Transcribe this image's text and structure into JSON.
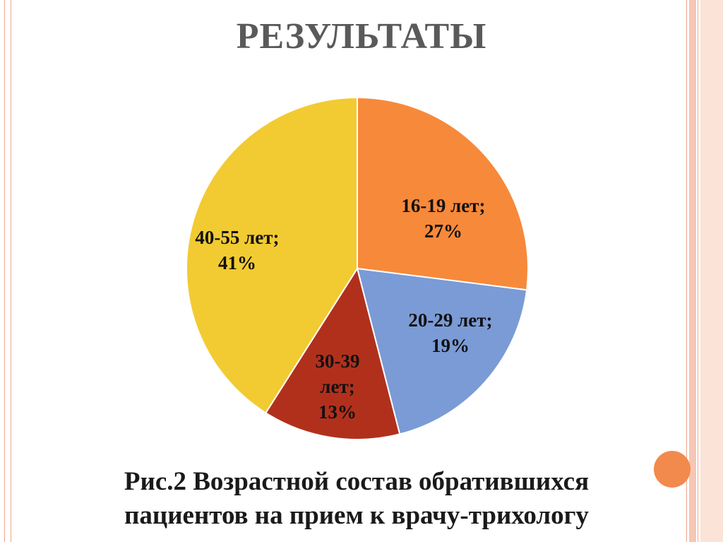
{
  "slide": {
    "title": "РЕЗУЛЬТАТЫ",
    "caption_line1": "Рис.2 Возрастной состав обратившихся",
    "caption_line2": "пациентов на прием к врачу-трихологу"
  },
  "chart_data": {
    "type": "pie",
    "categories": [
      "16-19 лет",
      "20-29 лет",
      "30-39 лет",
      "40-55 лет"
    ],
    "values": [
      27,
      19,
      13,
      41
    ],
    "unit": "%",
    "colors": [
      "#f7893b",
      "#7b9bd6",
      "#b1301c",
      "#f2cb32"
    ],
    "labels": [
      [
        "16-19 лет;",
        "27%"
      ],
      [
        "20-29 лет;",
        "19%"
      ],
      [
        "30-39",
        "лет;",
        "13%"
      ],
      [
        "40-55 лет;",
        "41%"
      ]
    ],
    "legend": "none"
  }
}
